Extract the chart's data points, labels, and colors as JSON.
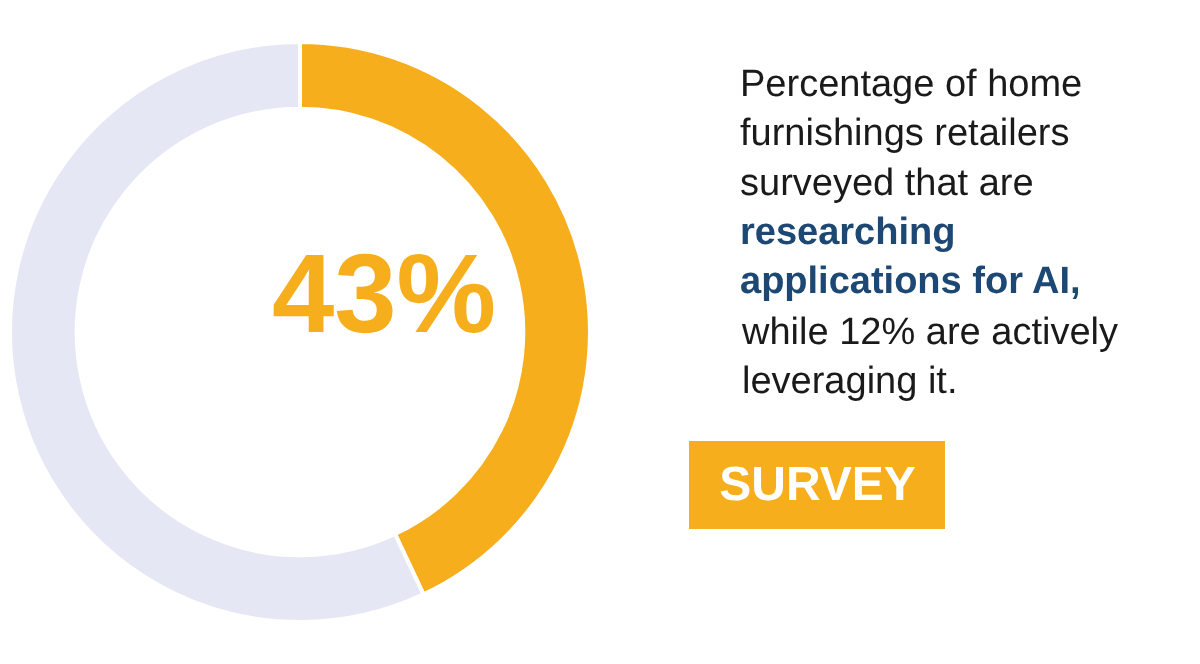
{
  "chart_data": {
    "type": "donut",
    "categories": [
      null,
      null
    ],
    "values": [
      43,
      57
    ],
    "colors": [
      "#f6ae1c",
      "#e5e8f4"
    ],
    "value_labels": [
      "43%",
      null
    ],
    "annotations": [
      "Percentage of home furnishings retailers surveyed that are",
      "researching applications for AI,",
      "while 12% are actively leveraging it.",
      "SURVEY"
    ]
  }
}
